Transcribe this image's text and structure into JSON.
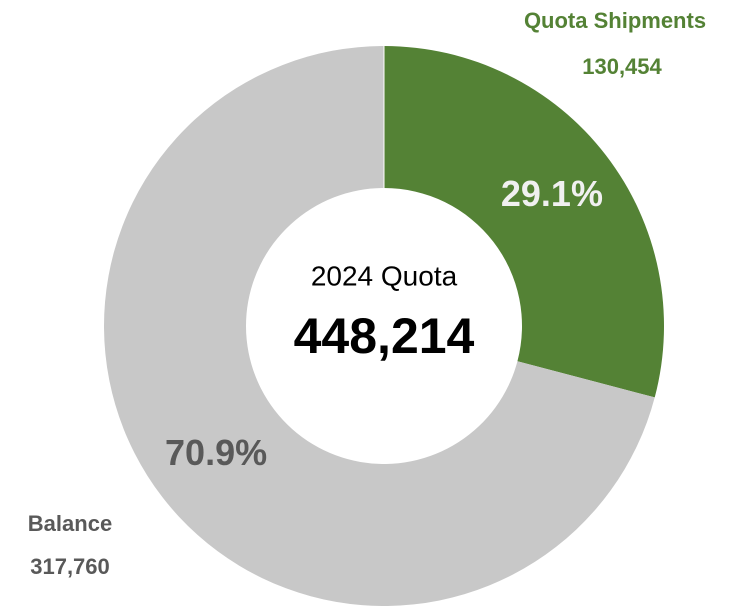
{
  "chart_data": {
    "type": "donut",
    "categories": [
      "Quota Shipments",
      "Balance"
    ],
    "values": [
      130454,
      317760
    ],
    "value_labels": [
      "130,454",
      "317,760"
    ],
    "percents": [
      29.1,
      70.9
    ],
    "percent_labels": [
      "29.1%",
      "70.9%"
    ],
    "colors": [
      "#548235",
      "#c8c8c8"
    ],
    "center_label": "2024 Quota",
    "total": 448214,
    "total_label": "448,214"
  }
}
